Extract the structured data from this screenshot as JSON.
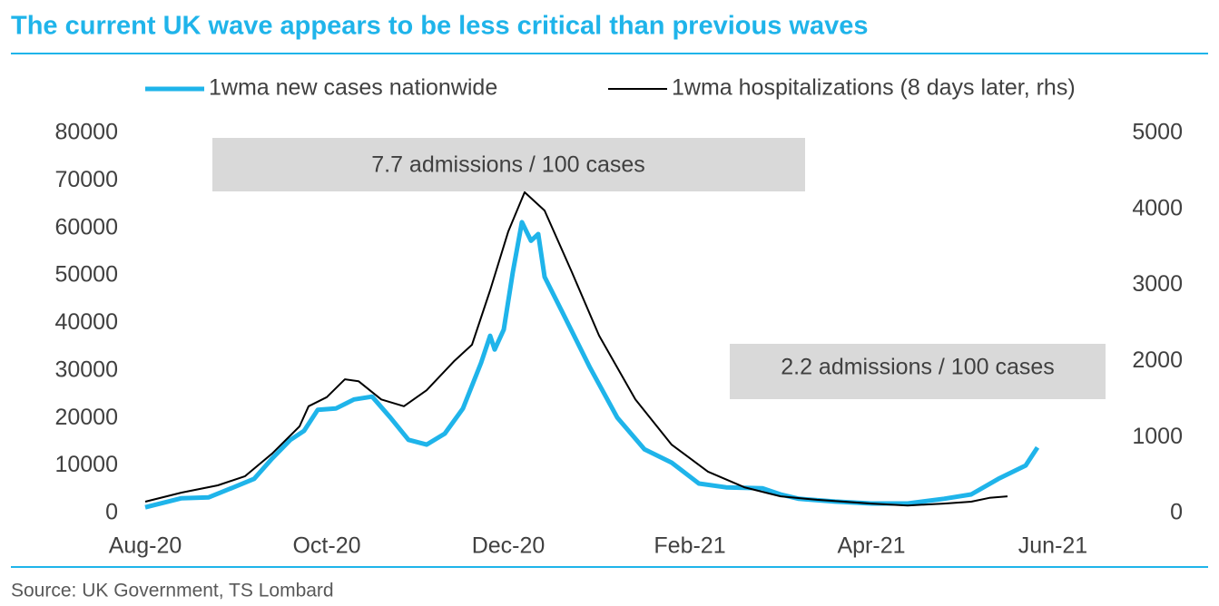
{
  "chart_data": {
    "type": "line",
    "title": "The current UK wave appears to be less critical than previous waves",
    "source": "Source: UK Government, TS Lombard",
    "annotations": [
      "7.7 admissions / 100 cases",
      "2.2 admissions / 100 cases"
    ],
    "xlim": [
      0,
      10
    ],
    "xticks": [
      {
        "value": 0,
        "label": "Aug-20"
      },
      {
        "value": 2,
        "label": "Oct-20"
      },
      {
        "value": 4,
        "label": "Dec-20"
      },
      {
        "value": 6,
        "label": "Feb-21"
      },
      {
        "value": 8,
        "label": "Apr-21"
      },
      {
        "value": 10,
        "label": "Jun-21"
      }
    ],
    "ylim": [
      0,
      80000
    ],
    "yticks": [
      0,
      10000,
      20000,
      30000,
      40000,
      50000,
      60000,
      70000,
      80000
    ],
    "y2lim": [
      0,
      5000
    ],
    "y2ticks": [
      0,
      1000,
      2000,
      3000,
      4000,
      5000
    ],
    "series": [
      {
        "name": "1wma new cases nationwide",
        "color": "#1fb4ea",
        "x": [
          0,
          0.4,
          0.7,
          1.0,
          1.2,
          1.4,
          1.6,
          1.75,
          1.9,
          2.1,
          2.3,
          2.5,
          2.7,
          2.9,
          3.1,
          3.3,
          3.5,
          3.7,
          3.8,
          3.85,
          3.95,
          4.05,
          4.15,
          4.25,
          4.33,
          4.4,
          4.6,
          4.9,
          5.2,
          5.5,
          5.8,
          6.1,
          6.4,
          6.8,
          7.0,
          7.2,
          7.6,
          8.0,
          8.4,
          8.8,
          9.1,
          9.4,
          9.7,
          9.83
        ],
        "values": [
          1300,
          3200,
          3400,
          5700,
          7300,
          11600,
          15500,
          17400,
          21800,
          22100,
          24000,
          24600,
          20200,
          15500,
          14500,
          16800,
          22100,
          31700,
          37400,
          34500,
          38700,
          50800,
          61300,
          57400,
          58800,
          49800,
          42200,
          30700,
          20200,
          13500,
          10700,
          6300,
          5500,
          5300,
          4000,
          3100,
          2500,
          2100,
          2100,
          3100,
          4000,
          7300,
          10100,
          13900
        ]
      },
      {
        "name": "1wma hospitalizations (8 days later, rhs)",
        "color": "#000000",
        "axis": "y2",
        "x": [
          0,
          0.4,
          0.8,
          1.1,
          1.4,
          1.7,
          1.8,
          2.0,
          2.2,
          2.35,
          2.6,
          2.85,
          3.1,
          3.4,
          3.6,
          3.8,
          4.0,
          4.18,
          4.4,
          4.7,
          5.0,
          5.4,
          5.8,
          6.2,
          6.6,
          7.0,
          7.4,
          8.0,
          8.4,
          8.8,
          9.1,
          9.3,
          9.5
        ],
        "values": [
          155,
          275,
          370,
          490,
          790,
          1145,
          1410,
          1530,
          1765,
          1740,
          1500,
          1410,
          1620,
          2000,
          2220,
          2935,
          3710,
          4225,
          3985,
          3175,
          2340,
          1500,
          905,
          550,
          345,
          225,
          180,
          130,
          105,
          130,
          155,
          205,
          225
        ]
      }
    ]
  }
}
